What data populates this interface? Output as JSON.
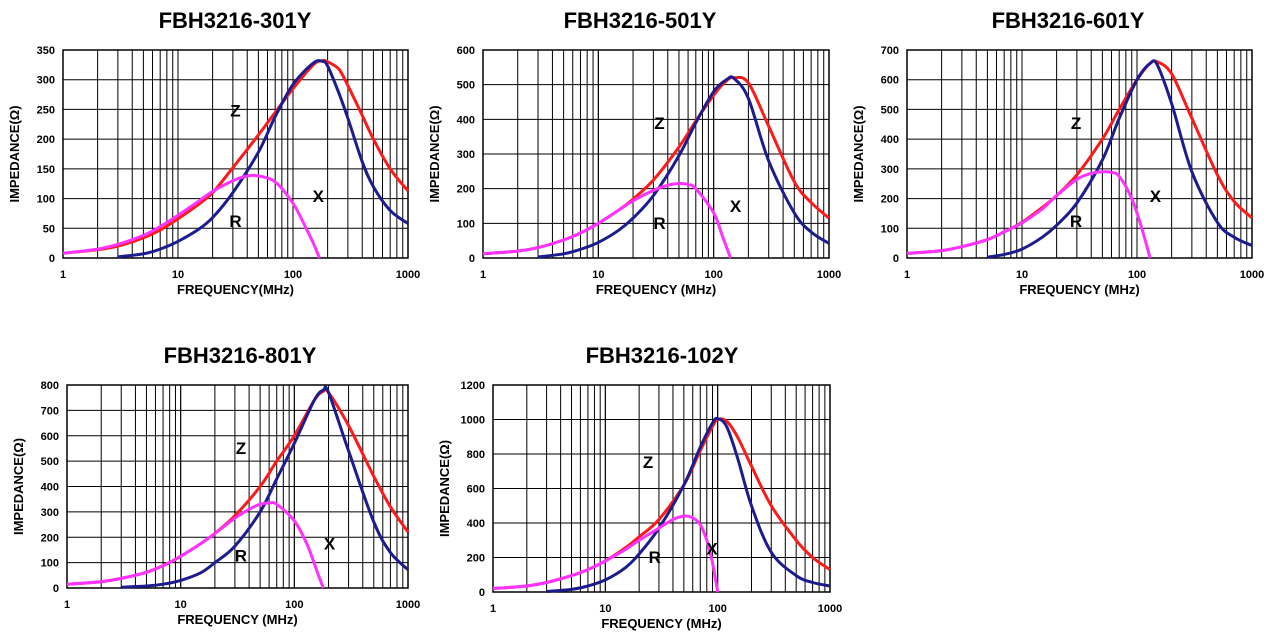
{
  "colors": {
    "Z": "#ff1a1a",
    "X": "#1c1c8f",
    "R": "#ff33ff",
    "grid": "#000000"
  },
  "chart_data": [
    {
      "type": "line",
      "title": "FBH3216-301Y",
      "xlabel": "FREQUENCY(MHz)",
      "ylabel": "IMPEDANCE(Ω)",
      "xscale": "log",
      "xlim": [
        1,
        1000
      ],
      "ylim": [
        0,
        350
      ],
      "xticks": [
        "1",
        "10",
        "100",
        "1000"
      ],
      "yticks": [
        "0",
        "50",
        "100",
        "150",
        "200",
        "250",
        "300",
        "350"
      ],
      "grid": true,
      "series": [
        {
          "name": "Z",
          "x": [
            1,
            2,
            3,
            5,
            7,
            10,
            15,
            20,
            30,
            50,
            70,
            100,
            150,
            180,
            200,
            250,
            300,
            400,
            500,
            700,
            1000
          ],
          "y": [
            8,
            14,
            20,
            34,
            47,
            66,
            90,
            110,
            152,
            207,
            245,
            285,
            325,
            332,
            330,
            318,
            290,
            240,
            200,
            150,
            113
          ]
        },
        {
          "name": "X",
          "x": [
            3,
            5,
            7,
            10,
            15,
            20,
            30,
            50,
            70,
            100,
            150,
            180,
            200,
            250,
            300,
            400,
            500,
            700,
            1000
          ],
          "y": [
            2,
            7,
            15,
            28,
            48,
            68,
            110,
            178,
            238,
            292,
            328,
            331,
            323,
            278,
            235,
            162,
            120,
            80,
            58
          ]
        },
        {
          "name": "R",
          "x": [
            1,
            2,
            3,
            5,
            7,
            10,
            15,
            20,
            30,
            40,
            50,
            70,
            100,
            130,
            150,
            170
          ],
          "y": [
            8,
            15,
            23,
            38,
            53,
            72,
            95,
            112,
            130,
            138,
            138,
            128,
            92,
            50,
            25,
            0
          ]
        }
      ],
      "annotations": [
        "Z",
        "X",
        "R"
      ]
    },
    {
      "type": "line",
      "title": "FBH3216-501Y",
      "xlabel": "FREQUENCY (MHz)",
      "ylabel": "IMPEDANCE(Ω)",
      "xscale": "log",
      "xlim": [
        1,
        1000
      ],
      "ylim": [
        0,
        600
      ],
      "xticks": [
        "1",
        "10",
        "100",
        "1000"
      ],
      "yticks": [
        "0",
        "100",
        "200",
        "300",
        "400",
        "500",
        "600"
      ],
      "grid": true,
      "series": [
        {
          "name": "Z",
          "x": [
            1,
            2,
            3,
            5,
            7,
            10,
            15,
            20,
            30,
            50,
            70,
            100,
            130,
            150,
            200,
            300,
            500,
            700,
            1000
          ],
          "y": [
            12,
            20,
            30,
            52,
            72,
            100,
            138,
            170,
            225,
            320,
            395,
            470,
            512,
            520,
            505,
            380,
            220,
            160,
            115
          ]
        },
        {
          "name": "X",
          "x": [
            3,
            5,
            7,
            10,
            15,
            20,
            30,
            50,
            70,
            100,
            130,
            150,
            200,
            300,
            500,
            700,
            1000
          ],
          "y": [
            3,
            12,
            25,
            45,
            80,
            115,
            180,
            295,
            390,
            480,
            515,
            518,
            460,
            280,
            130,
            75,
            42
          ]
        },
        {
          "name": "R",
          "x": [
            1,
            2,
            3,
            5,
            7,
            10,
            15,
            20,
            30,
            40,
            50,
            60,
            70,
            100,
            120,
            140
          ],
          "y": [
            12,
            20,
            30,
            52,
            72,
            100,
            138,
            165,
            195,
            210,
            215,
            212,
            200,
            130,
            60,
            0
          ]
        }
      ],
      "annotations": [
        "Z",
        "X",
        "R"
      ]
    },
    {
      "type": "line",
      "title": "FBH3216-601Y",
      "xlabel": "FREQUENCY (MHz)",
      "ylabel": "IMPEDANCE(Ω)",
      "xscale": "log",
      "xlim": [
        1,
        1000
      ],
      "ylim": [
        0,
        700
      ],
      "xticks": [
        "1",
        "10",
        "100",
        "1000"
      ],
      "yticks": [
        "0",
        "100",
        "200",
        "300",
        "400",
        "500",
        "600",
        "700"
      ],
      "grid": true,
      "series": [
        {
          "name": "Z",
          "x": [
            1,
            2,
            3,
            5,
            7,
            10,
            15,
            20,
            30,
            50,
            70,
            100,
            130,
            150,
            200,
            300,
            500,
            700,
            1000
          ],
          "y": [
            15,
            25,
            38,
            62,
            88,
            120,
            170,
            210,
            280,
            400,
            500,
            600,
            655,
            660,
            620,
            470,
            280,
            190,
            135
          ]
        },
        {
          "name": "X",
          "x": [
            5,
            7,
            10,
            15,
            20,
            30,
            50,
            70,
            100,
            130,
            150,
            200,
            300,
            500,
            700,
            1000
          ],
          "y": [
            3,
            12,
            30,
            70,
            110,
            185,
            330,
            470,
            600,
            655,
            650,
            520,
            290,
            120,
            70,
            42
          ]
        },
        {
          "name": "R",
          "x": [
            1,
            2,
            3,
            5,
            7,
            10,
            15,
            20,
            30,
            40,
            50,
            60,
            70,
            90,
            110,
            130
          ],
          "y": [
            15,
            25,
            38,
            62,
            88,
            118,
            165,
            210,
            265,
            285,
            290,
            288,
            275,
            200,
            100,
            0
          ]
        }
      ],
      "annotations": [
        "Z",
        "X",
        "R"
      ]
    },
    {
      "type": "line",
      "title": "FBH3216-801Y",
      "xlabel": "FREQUENCY (MHz)",
      "ylabel": "IMPEDANCE(Ω)",
      "xscale": "log",
      "xlim": [
        1,
        1000
      ],
      "ylim": [
        0,
        800
      ],
      "xticks": [
        "1",
        "10",
        "100",
        "1000"
      ],
      "yticks": [
        "0",
        "100",
        "200",
        "300",
        "400",
        "500",
        "600",
        "700",
        "800"
      ],
      "grid": true,
      "series": [
        {
          "name": "Z",
          "x": [
            1,
            2,
            3,
            5,
            7,
            10,
            15,
            20,
            30,
            50,
            70,
            100,
            150,
            180,
            200,
            300,
            500,
            700,
            1000
          ],
          "y": [
            15,
            25,
            38,
            62,
            88,
            125,
            175,
            215,
            285,
            400,
            500,
            600,
            740,
            775,
            770,
            640,
            440,
            320,
            220
          ]
        },
        {
          "name": "X",
          "x": [
            3,
            5,
            7,
            10,
            15,
            20,
            30,
            50,
            70,
            100,
            150,
            180,
            200,
            300,
            500,
            700,
            1000
          ],
          "y": [
            3,
            8,
            15,
            30,
            60,
            100,
            165,
            300,
            430,
            570,
            740,
            780,
            770,
            540,
            260,
            140,
            72
          ]
        },
        {
          "name": "R",
          "x": [
            1,
            2,
            3,
            5,
            7,
            10,
            15,
            20,
            30,
            40,
            50,
            60,
            70,
            100,
            130,
            160,
            180
          ],
          "y": [
            15,
            25,
            38,
            62,
            88,
            125,
            175,
            215,
            275,
            310,
            330,
            335,
            330,
            265,
            170,
            60,
            0
          ]
        }
      ],
      "annotations": [
        "Z",
        "X",
        "R"
      ]
    },
    {
      "type": "line",
      "title": "FBH3216-102Y",
      "xlabel": "FREQUENCY (MHz)",
      "ylabel": "IMPEDANCE(Ω)",
      "xscale": "log",
      "xlim": [
        1,
        1000
      ],
      "ylim": [
        0,
        1200
      ],
      "xticks": [
        "1",
        "10",
        "100",
        "1000"
      ],
      "yticks": [
        "0",
        "200",
        "400",
        "600",
        "800",
        "1000",
        "1200"
      ],
      "grid": true,
      "series": [
        {
          "name": "Z",
          "x": [
            1,
            2,
            3,
            5,
            7,
            10,
            15,
            20,
            30,
            50,
            70,
            90,
            100,
            120,
            150,
            200,
            300,
            500,
            700,
            1000
          ],
          "y": [
            20,
            35,
            55,
            95,
            130,
            180,
            255,
            320,
            420,
            620,
            820,
            960,
            1000,
            990,
            900,
            730,
            500,
            300,
            200,
            130
          ]
        },
        {
          "name": "X",
          "x": [
            3,
            5,
            7,
            10,
            15,
            20,
            30,
            50,
            70,
            90,
            100,
            120,
            150,
            200,
            300,
            500,
            700,
            1000
          ],
          "y": [
            3,
            15,
            35,
            70,
            140,
            220,
            370,
            620,
            840,
            980,
            1005,
            960,
            780,
            500,
            230,
            95,
            55,
            35
          ]
        },
        {
          "name": "R",
          "x": [
            1,
            2,
            3,
            5,
            7,
            10,
            15,
            20,
            30,
            40,
            50,
            60,
            70,
            80,
            90,
            100
          ],
          "y": [
            20,
            35,
            55,
            95,
            130,
            180,
            245,
            300,
            370,
            420,
            440,
            430,
            390,
            300,
            170,
            0
          ]
        }
      ],
      "annotations": [
        "Z",
        "X",
        "R"
      ]
    }
  ]
}
